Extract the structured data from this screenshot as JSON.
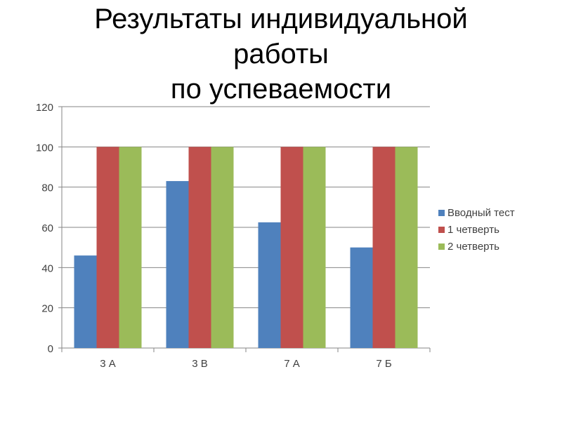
{
  "title_lines": [
    "Результаты индивидуальной",
    "работы",
    "по успеваемости"
  ],
  "chart_data": {
    "type": "bar",
    "categories": [
      "3 А",
      "3 В",
      "7 А",
      "7 Б"
    ],
    "series": [
      {
        "name": "Вводный тест",
        "values": [
          46,
          83,
          62.5,
          50
        ],
        "color": "#4f81bd"
      },
      {
        "name": "1 четверть",
        "values": [
          100,
          100,
          100,
          100
        ],
        "color": "#c0504d"
      },
      {
        "name": "2 четверть",
        "values": [
          100,
          100,
          100,
          100
        ],
        "color": "#9bbb59"
      }
    ],
    "ylim": [
      0,
      120
    ],
    "yticks": [
      0,
      20,
      40,
      60,
      80,
      100,
      120
    ],
    "grid": true,
    "legend_position": "right"
  }
}
